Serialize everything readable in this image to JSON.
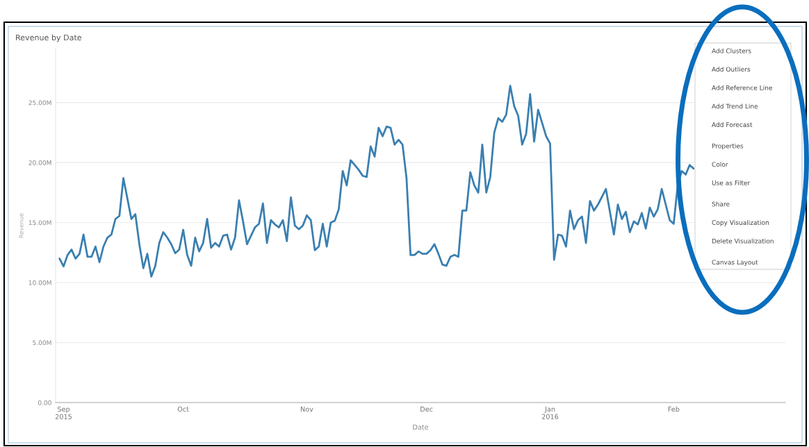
{
  "chart_data": {
    "type": "line",
    "title": "Revenue by Date",
    "xlabel": "Date",
    "ylabel": "Revenue",
    "xlim": [
      "2015-08-30",
      "2016-02-29"
    ],
    "xticks": [
      {
        "value": "2015-09-01",
        "label": "Sep\n2015"
      },
      {
        "value": "2015-10-01",
        "label": "Oct"
      },
      {
        "value": "2015-11-01",
        "label": "Nov"
      },
      {
        "value": "2015-12-01",
        "label": "Dec"
      },
      {
        "value": "2016-01-01",
        "label": "Jan\n2016"
      },
      {
        "value": "2016-02-01",
        "label": "Feb"
      }
    ],
    "ylim": [
      0,
      29.5
    ],
    "yticks": [
      {
        "value": 0,
        "label": "0.00"
      },
      {
        "value": 5,
        "label": "5.00M"
      },
      {
        "value": 10,
        "label": "10.00M"
      },
      {
        "value": 15,
        "label": "15.00M"
      },
      {
        "value": 20,
        "label": "20.00M"
      },
      {
        "value": 25,
        "label": "25.00M"
      }
    ],
    "grid": "y",
    "legend": false,
    "marker": "none",
    "line_style": "solid",
    "series": [
      {
        "color": "#3a7fb0",
        "x": [
          "2015-08-31",
          "2015-09-01",
          "2015-09-02",
          "2015-09-03",
          "2015-09-04",
          "2015-09-05",
          "2015-09-06",
          "2015-09-07",
          "2015-09-08",
          "2015-09-09",
          "2015-09-10",
          "2015-09-11",
          "2015-09-12",
          "2015-09-13",
          "2015-09-14",
          "2015-09-15",
          "2015-09-16",
          "2015-09-17",
          "2015-09-18",
          "2015-09-19",
          "2015-09-20",
          "2015-09-21",
          "2015-09-22",
          "2015-09-23",
          "2015-09-24",
          "2015-09-25",
          "2015-09-26",
          "2015-09-27",
          "2015-09-28",
          "2015-09-29",
          "2015-09-30",
          "2015-10-01",
          "2015-10-02",
          "2015-10-03",
          "2015-10-04",
          "2015-10-05",
          "2015-10-06",
          "2015-10-07",
          "2015-10-08",
          "2015-10-09",
          "2015-10-10",
          "2015-10-11",
          "2015-10-12",
          "2015-10-13",
          "2015-10-14",
          "2015-10-15",
          "2015-10-16",
          "2015-10-17",
          "2015-10-18",
          "2015-10-19",
          "2015-10-20",
          "2015-10-21",
          "2015-10-22",
          "2015-10-23",
          "2015-10-24",
          "2015-10-25",
          "2015-10-26",
          "2015-10-27",
          "2015-10-28",
          "2015-10-29",
          "2015-10-30",
          "2015-10-31",
          "2015-11-01",
          "2015-11-02",
          "2015-11-03",
          "2015-11-04",
          "2015-11-05",
          "2015-11-06",
          "2015-11-07",
          "2015-11-08",
          "2015-11-09",
          "2015-11-10",
          "2015-11-11",
          "2015-11-12",
          "2015-11-13",
          "2015-11-14",
          "2015-11-15",
          "2015-11-16",
          "2015-11-17",
          "2015-11-18",
          "2015-11-19",
          "2015-11-20",
          "2015-11-21",
          "2015-11-22",
          "2015-11-23",
          "2015-11-24",
          "2015-11-25",
          "2015-11-26",
          "2015-11-27",
          "2015-11-28",
          "2015-11-29",
          "2015-11-30",
          "2015-12-01",
          "2015-12-02",
          "2015-12-03",
          "2015-12-04",
          "2015-12-05",
          "2015-12-06",
          "2015-12-07",
          "2015-12-08",
          "2015-12-09",
          "2015-12-10",
          "2015-12-11",
          "2015-12-12",
          "2015-12-13",
          "2015-12-14",
          "2015-12-15",
          "2015-12-16",
          "2015-12-17",
          "2015-12-18",
          "2015-12-19",
          "2015-12-20",
          "2015-12-21",
          "2015-12-22",
          "2015-12-23",
          "2015-12-24",
          "2015-12-25",
          "2015-12-26",
          "2015-12-27",
          "2015-12-28",
          "2015-12-29",
          "2015-12-31",
          "2016-01-01",
          "2016-01-02",
          "2016-01-03",
          "2016-01-04",
          "2016-01-05",
          "2016-01-06",
          "2016-01-07",
          "2016-01-08",
          "2016-01-09",
          "2016-01-10",
          "2016-01-11",
          "2016-01-12",
          "2016-01-13",
          "2016-01-15",
          "2016-01-17",
          "2016-01-18",
          "2016-01-19",
          "2016-01-20",
          "2016-01-21",
          "2016-01-22",
          "2016-01-23",
          "2016-01-24",
          "2016-01-25",
          "2016-01-26",
          "2016-01-27",
          "2016-01-28",
          "2016-01-29",
          "2016-01-31",
          "2016-02-01",
          "2016-02-02",
          "2016-02-03",
          "2016-02-04",
          "2016-02-05",
          "2016-02-06"
        ],
        "values": [
          12.0,
          11.35,
          12.3,
          12.75,
          12.0,
          12.4,
          14.0,
          12.15,
          12.15,
          13.0,
          11.7,
          13.0,
          13.75,
          14.0,
          15.3,
          15.55,
          18.7,
          17.0,
          15.3,
          15.7,
          13.2,
          11.2,
          12.4,
          10.5,
          11.4,
          13.3,
          14.2,
          13.75,
          13.2,
          12.45,
          12.75,
          14.4,
          12.3,
          11.4,
          13.75,
          12.6,
          13.3,
          15.3,
          12.9,
          13.3,
          13.0,
          13.9,
          14.0,
          12.75,
          13.75,
          16.85,
          15.1,
          13.2,
          13.9,
          14.6,
          14.9,
          16.6,
          13.3,
          15.2,
          14.85,
          14.6,
          15.2,
          13.45,
          17.1,
          14.75,
          14.45,
          14.75,
          15.6,
          15.2,
          12.7,
          13.0,
          14.9,
          13.0,
          15.0,
          15.15,
          16.1,
          19.3,
          18.1,
          20.2,
          19.8,
          19.4,
          18.9,
          18.8,
          21.35,
          20.5,
          22.9,
          22.2,
          23.0,
          22.9,
          21.5,
          21.9,
          21.5,
          18.7,
          12.3,
          12.3,
          12.6,
          12.4,
          12.4,
          12.7,
          13.2,
          12.4,
          11.5,
          11.4,
          12.15,
          12.3,
          12.15,
          16.0,
          16.0,
          19.2,
          18.1,
          17.5,
          21.5,
          17.5,
          18.8,
          22.5,
          23.7,
          23.4,
          24.0,
          26.4,
          24.7,
          23.9,
          21.5,
          22.4,
          25.7,
          21.75,
          24.4,
          22.2,
          21.6,
          11.9,
          14.0,
          13.9,
          13.0,
          16.0,
          14.45,
          15.2,
          15.5,
          13.3,
          16.8,
          16.0,
          16.5,
          17.8,
          14.0,
          16.5,
          15.3,
          15.9,
          14.2,
          15.1,
          14.85,
          15.8,
          14.5,
          16.25,
          15.5,
          16.1,
          17.8,
          15.2,
          14.9,
          18.1,
          19.3,
          19.0,
          19.8,
          19.5
        ]
      }
    ],
    "annotations": [
      "Add Clusters",
      "Add Outliers",
      "Add Reference Line",
      "Add Trend Line",
      "Add Forecast",
      "Properties",
      "Color",
      "Use as Filter",
      "Share",
      "Copy Visualization",
      "Delete Visualization",
      "Canvas Layout"
    ]
  }
}
